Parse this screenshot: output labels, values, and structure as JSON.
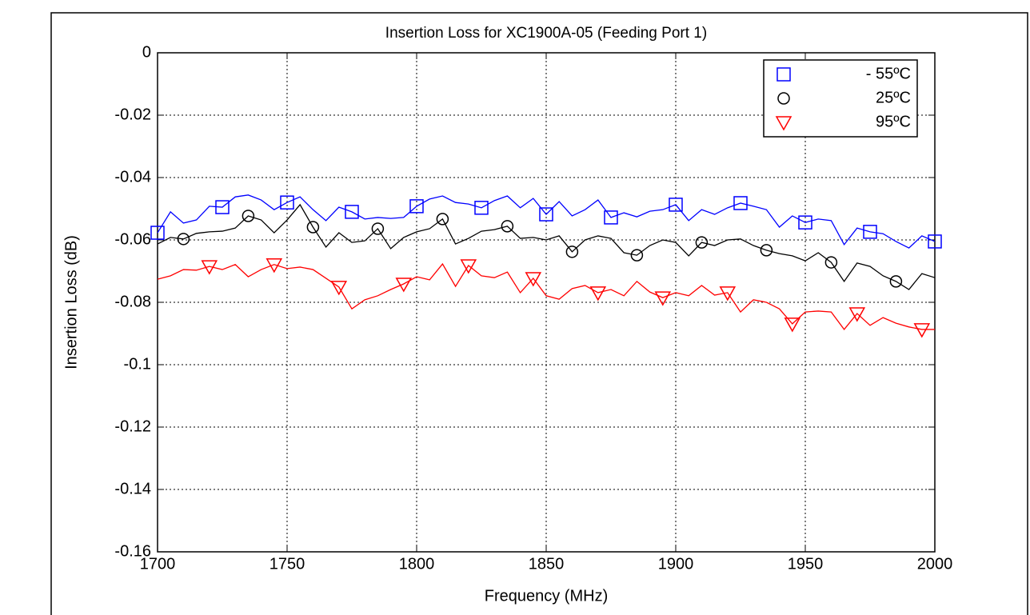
{
  "chart_data": {
    "type": "line",
    "title": "Insertion Loss for XC1900A-05 (Feeding Port 1)",
    "x_label": "Frequency (MHz)",
    "y_label": "Insertion Loss (dB)",
    "x": [
      1700,
      1705,
      1710,
      1715,
      1720,
      1725,
      1730,
      1735,
      1740,
      1745,
      1750,
      1755,
      1760,
      1765,
      1770,
      1775,
      1780,
      1785,
      1790,
      1795,
      1800,
      1805,
      1810,
      1815,
      1820,
      1825,
      1830,
      1835,
      1840,
      1845,
      1850,
      1855,
      1860,
      1865,
      1870,
      1875,
      1880,
      1885,
      1890,
      1895,
      1900,
      1905,
      1910,
      1915,
      1920,
      1925,
      1930,
      1935,
      1940,
      1945,
      1950,
      1955,
      1960,
      1965,
      1970,
      1975,
      1980,
      1985,
      1990,
      1995,
      2000
    ],
    "xlim": [
      1700,
      2000
    ],
    "xticks": [
      1700,
      1750,
      1800,
      1850,
      1900,
      1950,
      2000
    ],
    "ylim": [
      -0.16,
      0
    ],
    "yticks": [
      0,
      -0.02,
      -0.04,
      -0.06,
      -0.08,
      -0.1,
      -0.12,
      -0.14,
      -0.16
    ],
    "grid": true,
    "legend": "upper right",
    "series": [
      {
        "name": "- 55ºC",
        "color": "#0000ff",
        "marker": "square",
        "markevery": [
          0,
          5
        ],
        "values": [
          -0.0577,
          -0.051,
          -0.0546,
          -0.0536,
          -0.0492,
          -0.0495,
          -0.0462,
          -0.0456,
          -0.0472,
          -0.0503,
          -0.048,
          -0.0462,
          -0.0503,
          -0.0538,
          -0.0495,
          -0.051,
          -0.0533,
          -0.0528,
          -0.0531,
          -0.0528,
          -0.0492,
          -0.0469,
          -0.0459,
          -0.048,
          -0.0485,
          -0.0497,
          -0.0474,
          -0.0459,
          -0.0497,
          -0.0467,
          -0.0518,
          -0.0477,
          -0.0523,
          -0.0503,
          -0.0472,
          -0.0528,
          -0.0513,
          -0.0526,
          -0.0508,
          -0.0503,
          -0.0487,
          -0.0538,
          -0.0503,
          -0.0518,
          -0.0497,
          -0.0482,
          -0.0492,
          -0.0503,
          -0.0559,
          -0.0523,
          -0.0544,
          -0.0533,
          -0.0538,
          -0.0615,
          -0.0562,
          -0.0574,
          -0.058,
          -0.0605,
          -0.0626,
          -0.0587,
          -0.0605
        ]
      },
      {
        "name": "25ºC",
        "color": "#000000",
        "marker": "circle",
        "markevery": [
          2,
          5
        ],
        "values": [
          -0.0613,
          -0.0592,
          -0.0597,
          -0.0579,
          -0.0574,
          -0.0572,
          -0.0562,
          -0.0523,
          -0.0536,
          -0.0577,
          -0.0536,
          -0.0487,
          -0.0559,
          -0.0623,
          -0.0577,
          -0.0608,
          -0.0603,
          -0.0564,
          -0.0628,
          -0.0592,
          -0.0574,
          -0.0564,
          -0.0533,
          -0.0613,
          -0.0595,
          -0.0572,
          -0.0567,
          -0.0556,
          -0.0595,
          -0.0592,
          -0.06,
          -0.0587,
          -0.0638,
          -0.06,
          -0.0587,
          -0.0595,
          -0.0641,
          -0.0649,
          -0.0618,
          -0.06,
          -0.0608,
          -0.0651,
          -0.0608,
          -0.0618,
          -0.06,
          -0.0597,
          -0.0618,
          -0.0633,
          -0.0644,
          -0.0651,
          -0.0667,
          -0.0641,
          -0.0672,
          -0.0733,
          -0.0674,
          -0.0685,
          -0.0715,
          -0.0733,
          -0.0759,
          -0.0708,
          -0.0721
        ]
      },
      {
        "name": "95ºC",
        "color": "#ff0000",
        "marker": "triangle-down",
        "markevery": [
          4,
          5
        ],
        "values": [
          -0.0726,
          -0.0715,
          -0.0695,
          -0.0697,
          -0.0685,
          -0.0695,
          -0.0679,
          -0.0718,
          -0.0695,
          -0.0679,
          -0.0692,
          -0.0687,
          -0.0695,
          -0.0723,
          -0.0751,
          -0.0821,
          -0.0792,
          -0.0779,
          -0.0759,
          -0.0741,
          -0.0718,
          -0.0728,
          -0.0677,
          -0.0749,
          -0.0682,
          -0.0715,
          -0.0721,
          -0.0703,
          -0.0769,
          -0.0723,
          -0.0779,
          -0.079,
          -0.0756,
          -0.0746,
          -0.0769,
          -0.0759,
          -0.0779,
          -0.0733,
          -0.0767,
          -0.0785,
          -0.0769,
          -0.0779,
          -0.0746,
          -0.0777,
          -0.0769,
          -0.0831,
          -0.0792,
          -0.08,
          -0.0821,
          -0.0869,
          -0.0831,
          -0.0828,
          -0.0831,
          -0.0887,
          -0.0836,
          -0.0874,
          -0.0849,
          -0.0867,
          -0.0879,
          -0.0887,
          -0.0887
        ]
      }
    ]
  }
}
